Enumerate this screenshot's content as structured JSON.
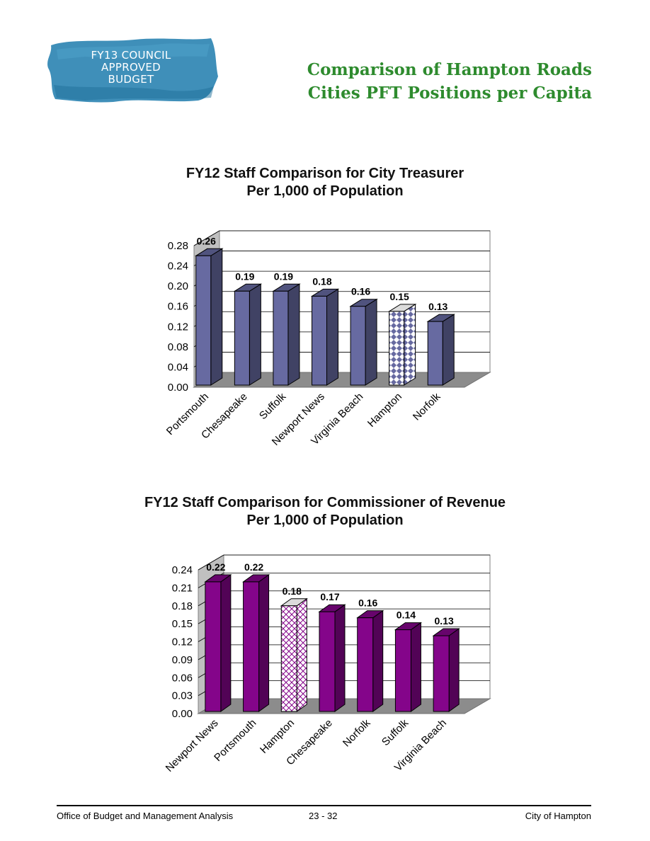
{
  "badge": {
    "lines": [
      "FY13 COUNCIL",
      "APPROVED",
      "BUDGET"
    ]
  },
  "page_title": {
    "line1": "Comparison of Hampton Roads",
    "line2": "Cities PFT Positions per Capita"
  },
  "footer": {
    "left": "Office of Budget and Management Analysis",
    "center": "23 - 32",
    "right": "City of Hampton"
  },
  "colors": {
    "title_green": "#2e8b2e",
    "badge_blue": "#2f86b3",
    "treasurer_bar": "#676aa1",
    "revenue_bar": "#84058a"
  },
  "chart_data": [
    {
      "type": "bar",
      "title_line1": "FY12 Staff Comparison for City Treasurer",
      "title_line2": "Per 1,000 of Population",
      "categories": [
        "Portsmouth",
        "Chesapeake",
        "Suffolk",
        "Newport News",
        "Virginia Beach",
        "Hampton",
        "Norfolk"
      ],
      "values": [
        0.26,
        0.19,
        0.19,
        0.18,
        0.16,
        0.15,
        0.13
      ],
      "value_labels": [
        "0.26",
        "0.19",
        "0.19",
        "0.18",
        "0.16",
        "0.15",
        "0.13"
      ],
      "highlight": "Hampton",
      "ylim": [
        0,
        0.28
      ],
      "yticks": [
        "0.00",
        "0.04",
        "0.08",
        "0.12",
        "0.16",
        "0.20",
        "0.24",
        "0.28"
      ],
      "grid": true
    },
    {
      "type": "bar",
      "title_line1": "FY12 Staff Comparison for Commissioner of Revenue",
      "title_line2": "Per 1,000 of Population",
      "categories": [
        "Newport News",
        "Portsmouth",
        "Hampton",
        "Chesapeake",
        "Norfolk",
        "Suffolk",
        "Virginia Beach"
      ],
      "values": [
        0.22,
        0.22,
        0.18,
        0.17,
        0.16,
        0.14,
        0.13
      ],
      "value_labels": [
        "0.22",
        "0.22",
        "0.18",
        "0.17",
        "0.16",
        "0.14",
        "0.13"
      ],
      "highlight": "Hampton",
      "ylim": [
        0,
        0.24
      ],
      "yticks": [
        "0.00",
        "0.03",
        "0.06",
        "0.09",
        "0.12",
        "0.15",
        "0.18",
        "0.21",
        "0.24"
      ],
      "grid": true
    }
  ]
}
